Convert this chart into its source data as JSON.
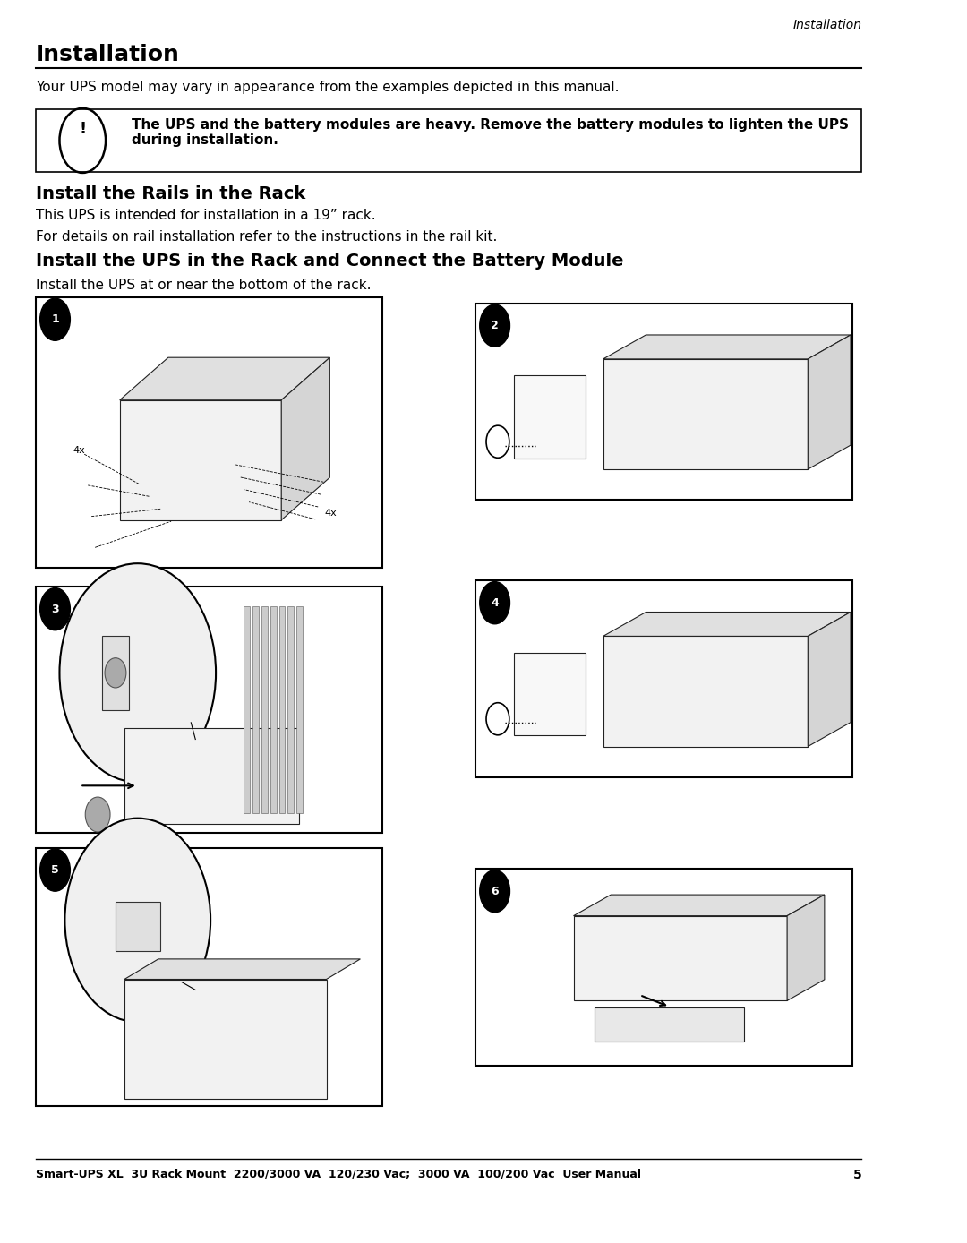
{
  "page_header_italic": "Installation",
  "title": "Installation",
  "intro_text": "Your UPS model may vary in appearance from the examples depicted in this manual.",
  "warning_text": "The UPS and the battery modules are heavy. Remove the battery modules to lighten the UPS\nduring installation.",
  "section1_title": "Install the Rails in the Rack",
  "section1_p1": "This UPS is intended for installation in a 19” rack.",
  "section1_p2": "For details on rail installation refer to the instructions in the rail kit.",
  "section2_title": "Install the UPS in the Rack and Connect the Battery Module",
  "section2_p1": "Install the UPS at or near the bottom of the rack.",
  "footer_text": "Smart-UPS XL  3U Rack Mount  2200/3000 VA  120/230 Vac;  3000 VA  100/200 Vac  User Manual",
  "footer_page": "5",
  "bg_color": "#ffffff",
  "text_color": "#000000",
  "line_color": "#000000",
  "box_color": "#000000",
  "diagram_labels": [
    "1",
    "2",
    "3",
    "4",
    "5",
    "6"
  ]
}
